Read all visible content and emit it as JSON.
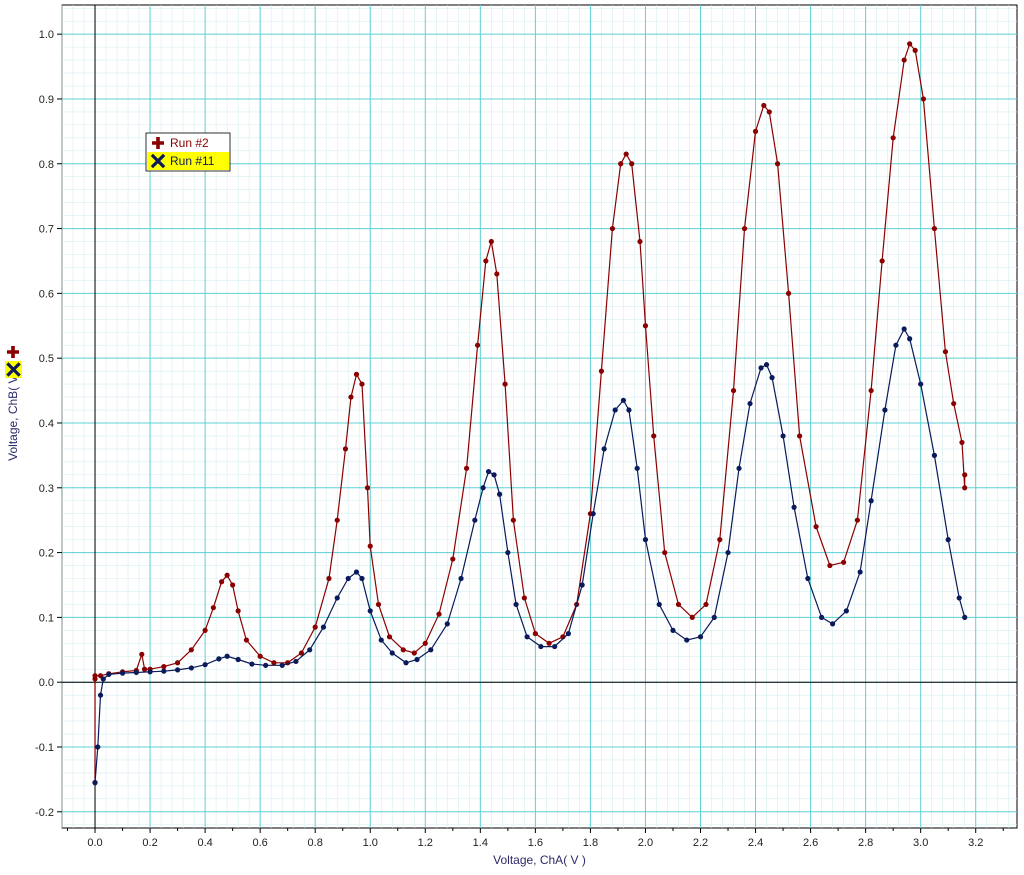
{
  "chart_data": {
    "type": "scatter",
    "xlabel": "Voltage, ChA( V )",
    "ylabel": "Voltage, ChB( V )",
    "xlim": [
      -0.12,
      3.35
    ],
    "ylim": [
      -0.225,
      1.045
    ],
    "xticks": [
      "0.0",
      "0.2",
      "0.4",
      "0.6",
      "0.8",
      "1.0",
      "1.2",
      "1.4",
      "1.6",
      "1.8",
      "2.0",
      "2.2",
      "2.4",
      "2.6",
      "2.8",
      "3.0",
      "3.2"
    ],
    "yticks": [
      "-0.2",
      "-0.1",
      "0.0",
      "0.1",
      "0.2",
      "0.3",
      "0.4",
      "0.5",
      "0.6",
      "0.7",
      "0.8",
      "0.9",
      "1.0"
    ],
    "grid": true,
    "legend_position": "top-left",
    "series": [
      {
        "name": "Run #2",
        "color": "#8b0000",
        "marker": "plus",
        "points": [
          [
            0.0,
            -0.155
          ],
          [
            0.0,
            0.005
          ],
          [
            0.0,
            0.01
          ],
          [
            0.02,
            0.01
          ],
          [
            0.05,
            0.013
          ],
          [
            0.1,
            0.016
          ],
          [
            0.15,
            0.018
          ],
          [
            0.17,
            0.043
          ],
          [
            0.18,
            0.02
          ],
          [
            0.2,
            0.02
          ],
          [
            0.25,
            0.024
          ],
          [
            0.3,
            0.03
          ],
          [
            0.35,
            0.05
          ],
          [
            0.4,
            0.08
          ],
          [
            0.43,
            0.115
          ],
          [
            0.46,
            0.155
          ],
          [
            0.48,
            0.165
          ],
          [
            0.5,
            0.15
          ],
          [
            0.52,
            0.11
          ],
          [
            0.55,
            0.065
          ],
          [
            0.6,
            0.04
          ],
          [
            0.65,
            0.03
          ],
          [
            0.7,
            0.03
          ],
          [
            0.75,
            0.045
          ],
          [
            0.8,
            0.085
          ],
          [
            0.85,
            0.16
          ],
          [
            0.88,
            0.25
          ],
          [
            0.91,
            0.36
          ],
          [
            0.93,
            0.44
          ],
          [
            0.95,
            0.475
          ],
          [
            0.97,
            0.46
          ],
          [
            0.99,
            0.3
          ],
          [
            1.0,
            0.21
          ],
          [
            1.03,
            0.12
          ],
          [
            1.07,
            0.07
          ],
          [
            1.12,
            0.05
          ],
          [
            1.16,
            0.045
          ],
          [
            1.2,
            0.06
          ],
          [
            1.25,
            0.105
          ],
          [
            1.3,
            0.19
          ],
          [
            1.35,
            0.33
          ],
          [
            1.39,
            0.52
          ],
          [
            1.42,
            0.65
          ],
          [
            1.44,
            0.68
          ],
          [
            1.46,
            0.63
          ],
          [
            1.49,
            0.46
          ],
          [
            1.52,
            0.25
          ],
          [
            1.56,
            0.13
          ],
          [
            1.6,
            0.075
          ],
          [
            1.65,
            0.06
          ],
          [
            1.7,
            0.07
          ],
          [
            1.75,
            0.12
          ],
          [
            1.8,
            0.26
          ],
          [
            1.84,
            0.48
          ],
          [
            1.88,
            0.7
          ],
          [
            1.91,
            0.8
          ],
          [
            1.93,
            0.815
          ],
          [
            1.95,
            0.8
          ],
          [
            1.98,
            0.68
          ],
          [
            2.0,
            0.55
          ],
          [
            2.03,
            0.38
          ],
          [
            2.07,
            0.2
          ],
          [
            2.12,
            0.12
          ],
          [
            2.17,
            0.1
          ],
          [
            2.22,
            0.12
          ],
          [
            2.27,
            0.22
          ],
          [
            2.32,
            0.45
          ],
          [
            2.36,
            0.7
          ],
          [
            2.4,
            0.85
          ],
          [
            2.43,
            0.89
          ],
          [
            2.45,
            0.88
          ],
          [
            2.48,
            0.8
          ],
          [
            2.52,
            0.6
          ],
          [
            2.56,
            0.38
          ],
          [
            2.62,
            0.24
          ],
          [
            2.67,
            0.18
          ],
          [
            2.72,
            0.185
          ],
          [
            2.77,
            0.25
          ],
          [
            2.82,
            0.45
          ],
          [
            2.86,
            0.65
          ],
          [
            2.9,
            0.84
          ],
          [
            2.94,
            0.96
          ],
          [
            2.96,
            0.985
          ],
          [
            2.98,
            0.975
          ],
          [
            3.01,
            0.9
          ],
          [
            3.05,
            0.7
          ],
          [
            3.09,
            0.51
          ],
          [
            3.12,
            0.43
          ],
          [
            3.15,
            0.37
          ],
          [
            3.16,
            0.3
          ],
          [
            3.16,
            0.32
          ]
        ]
      },
      {
        "name": "Run #11",
        "color": "#0a1a5a",
        "marker": "x",
        "points": [
          [
            0.0,
            -0.155
          ],
          [
            0.01,
            -0.1
          ],
          [
            0.02,
            -0.02
          ],
          [
            0.03,
            0.005
          ],
          [
            0.05,
            0.012
          ],
          [
            0.1,
            0.014
          ],
          [
            0.15,
            0.015
          ],
          [
            0.2,
            0.016
          ],
          [
            0.25,
            0.017
          ],
          [
            0.3,
            0.019
          ],
          [
            0.35,
            0.022
          ],
          [
            0.4,
            0.027
          ],
          [
            0.45,
            0.036
          ],
          [
            0.48,
            0.04
          ],
          [
            0.52,
            0.035
          ],
          [
            0.57,
            0.028
          ],
          [
            0.62,
            0.026
          ],
          [
            0.68,
            0.026
          ],
          [
            0.73,
            0.032
          ],
          [
            0.78,
            0.05
          ],
          [
            0.83,
            0.085
          ],
          [
            0.88,
            0.13
          ],
          [
            0.92,
            0.16
          ],
          [
            0.95,
            0.17
          ],
          [
            0.97,
            0.16
          ],
          [
            1.0,
            0.11
          ],
          [
            1.04,
            0.065
          ],
          [
            1.08,
            0.045
          ],
          [
            1.13,
            0.03
          ],
          [
            1.17,
            0.035
          ],
          [
            1.22,
            0.05
          ],
          [
            1.28,
            0.09
          ],
          [
            1.33,
            0.16
          ],
          [
            1.38,
            0.25
          ],
          [
            1.41,
            0.3
          ],
          [
            1.43,
            0.325
          ],
          [
            1.45,
            0.32
          ],
          [
            1.47,
            0.29
          ],
          [
            1.5,
            0.2
          ],
          [
            1.53,
            0.12
          ],
          [
            1.57,
            0.07
          ],
          [
            1.62,
            0.055
          ],
          [
            1.67,
            0.055
          ],
          [
            1.72,
            0.075
          ],
          [
            1.77,
            0.15
          ],
          [
            1.81,
            0.26
          ],
          [
            1.85,
            0.36
          ],
          [
            1.89,
            0.42
          ],
          [
            1.92,
            0.435
          ],
          [
            1.94,
            0.42
          ],
          [
            1.97,
            0.33
          ],
          [
            2.0,
            0.22
          ],
          [
            2.05,
            0.12
          ],
          [
            2.1,
            0.08
          ],
          [
            2.15,
            0.065
          ],
          [
            2.2,
            0.07
          ],
          [
            2.25,
            0.1
          ],
          [
            2.3,
            0.2
          ],
          [
            2.34,
            0.33
          ],
          [
            2.38,
            0.43
          ],
          [
            2.42,
            0.485
          ],
          [
            2.44,
            0.49
          ],
          [
            2.46,
            0.47
          ],
          [
            2.5,
            0.38
          ],
          [
            2.54,
            0.27
          ],
          [
            2.59,
            0.16
          ],
          [
            2.64,
            0.1
          ],
          [
            2.68,
            0.09
          ],
          [
            2.73,
            0.11
          ],
          [
            2.78,
            0.17
          ],
          [
            2.82,
            0.28
          ],
          [
            2.87,
            0.42
          ],
          [
            2.91,
            0.52
          ],
          [
            2.94,
            0.545
          ],
          [
            2.96,
            0.53
          ],
          [
            3.0,
            0.46
          ],
          [
            3.05,
            0.35
          ],
          [
            3.1,
            0.22
          ],
          [
            3.14,
            0.13
          ],
          [
            3.16,
            0.1
          ]
        ]
      }
    ]
  }
}
